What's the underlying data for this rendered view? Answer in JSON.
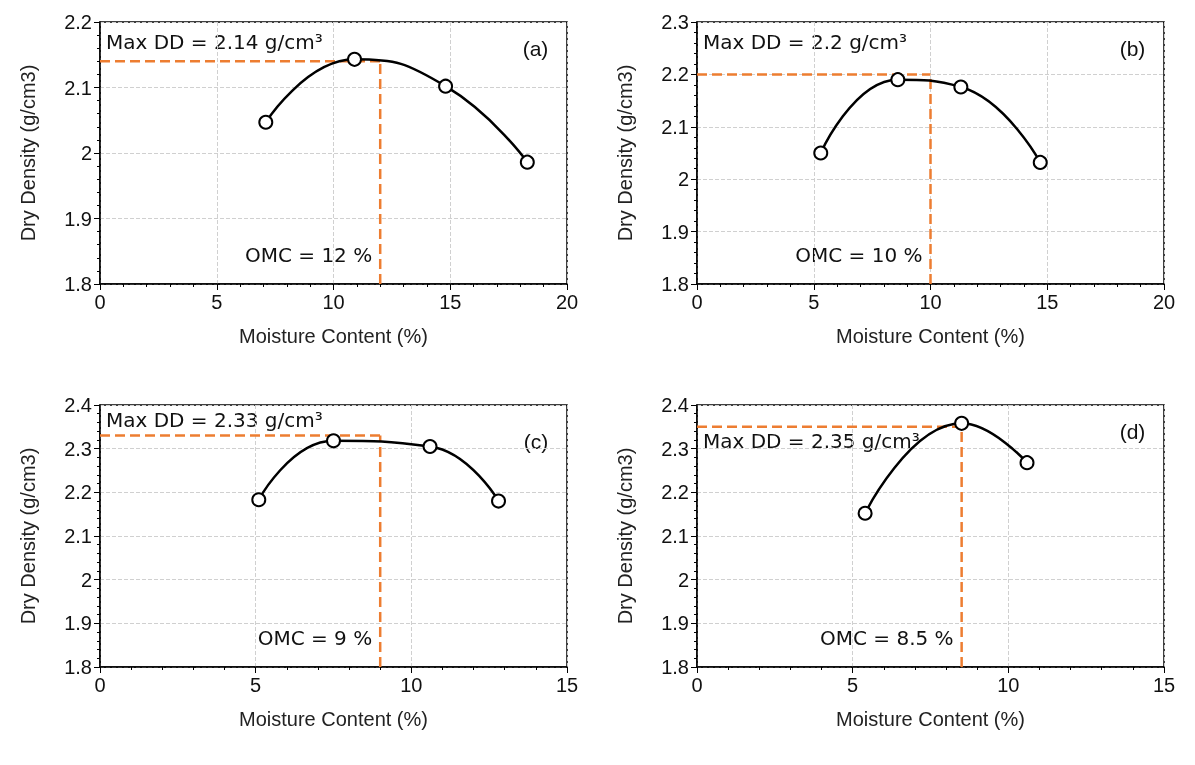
{
  "chart_data": [
    {
      "type": "line",
      "xlabel": "Moisture Content (%)",
      "ylabel": "Dry Density (g/cm3)",
      "x": [
        7.1,
        10.9,
        14.8,
        18.3
      ],
      "values": [
        2.047,
        2.143,
        2.102,
        1.986
      ],
      "color": "#000000",
      "marker": "circle",
      "line_style": "solid",
      "grid": true,
      "xlim": [
        0,
        20
      ],
      "xticks": [
        0,
        5,
        10,
        15,
        20
      ],
      "ylim": [
        1.8,
        2.2
      ],
      "yticks": [
        1.8,
        1.9,
        2,
        2.1,
        2.2
      ],
      "ref_lines": [
        {
          "axis": "y",
          "value": 2.14,
          "color": "#ed7d31",
          "line_style": "dashed"
        },
        {
          "axis": "x",
          "value": 12,
          "color": "#ed7d31",
          "line_style": "dashed"
        }
      ],
      "annotations": [
        "Max DD = 2.14 g/cm³",
        "OMC = 12 %",
        "(a)"
      ]
    },
    {
      "type": "line",
      "xlabel": "Moisture Content (%)",
      "ylabel": "Dry Density (g/cm3)",
      "x": [
        5.3,
        8.6,
        11.3,
        14.7
      ],
      "values": [
        2.05,
        2.19,
        2.176,
        2.032
      ],
      "color": "#000000",
      "marker": "circle",
      "line_style": "solid",
      "grid": true,
      "xlim": [
        0,
        20
      ],
      "xticks": [
        0,
        5,
        10,
        15,
        20
      ],
      "ylim": [
        1.8,
        2.3
      ],
      "yticks": [
        1.8,
        1.9,
        2,
        2.1,
        2.2,
        2.3
      ],
      "ref_lines": [
        {
          "axis": "y",
          "value": 2.2,
          "color": "#ed7d31",
          "line_style": "dashed"
        },
        {
          "axis": "x",
          "value": 10,
          "color": "#ed7d31",
          "line_style": "dashed"
        }
      ],
      "annotations": [
        "Max DD = 2.2 g/cm³",
        "OMC = 10 %",
        "(b)"
      ]
    },
    {
      "type": "line",
      "xlabel": "Moisture Content (%)",
      "ylabel": "Dry Density (g/cm3)",
      "x": [
        5.1,
        7.5,
        10.6,
        12.8
      ],
      "values": [
        2.183,
        2.318,
        2.305,
        2.18
      ],
      "color": "#000000",
      "marker": "circle",
      "line_style": "solid",
      "grid": true,
      "xlim": [
        0,
        15
      ],
      "xticks": [
        0,
        5,
        10,
        15
      ],
      "ylim": [
        1.8,
        2.4
      ],
      "yticks": [
        1.8,
        1.9,
        2,
        2.1,
        2.2,
        2.3,
        2.4
      ],
      "ref_lines": [
        {
          "axis": "y",
          "value": 2.33,
          "color": "#ed7d31",
          "line_style": "dashed"
        },
        {
          "axis": "x",
          "value": 9,
          "color": "#ed7d31",
          "line_style": "dashed"
        }
      ],
      "annotations": [
        "Max DD = 2.33 g/cm³",
        "OMC = 9 %",
        "(c)"
      ]
    },
    {
      "type": "line",
      "xlabel": "Moisture Content (%)",
      "ylabel": "Dry Density (g/cm3)",
      "x": [
        5.4,
        8.5,
        10.6
      ],
      "values": [
        2.152,
        2.358,
        2.268
      ],
      "color": "#000000",
      "marker": "circle",
      "line_style": "solid",
      "grid": true,
      "xlim": [
        0,
        15
      ],
      "xticks": [
        0,
        5,
        10,
        15
      ],
      "ylim": [
        1.8,
        2.4
      ],
      "yticks": [
        1.8,
        1.9,
        2,
        2.1,
        2.2,
        2.3,
        2.4
      ],
      "ref_lines": [
        {
          "axis": "y",
          "value": 2.35,
          "color": "#ed7d31",
          "line_style": "dashed"
        },
        {
          "axis": "x",
          "value": 8.5,
          "color": "#ed7d31",
          "line_style": "dashed"
        }
      ],
      "annotations": [
        "Max DD = 2.35 g/cm³",
        "OMC = 8.5 %",
        "(d)"
      ]
    }
  ]
}
